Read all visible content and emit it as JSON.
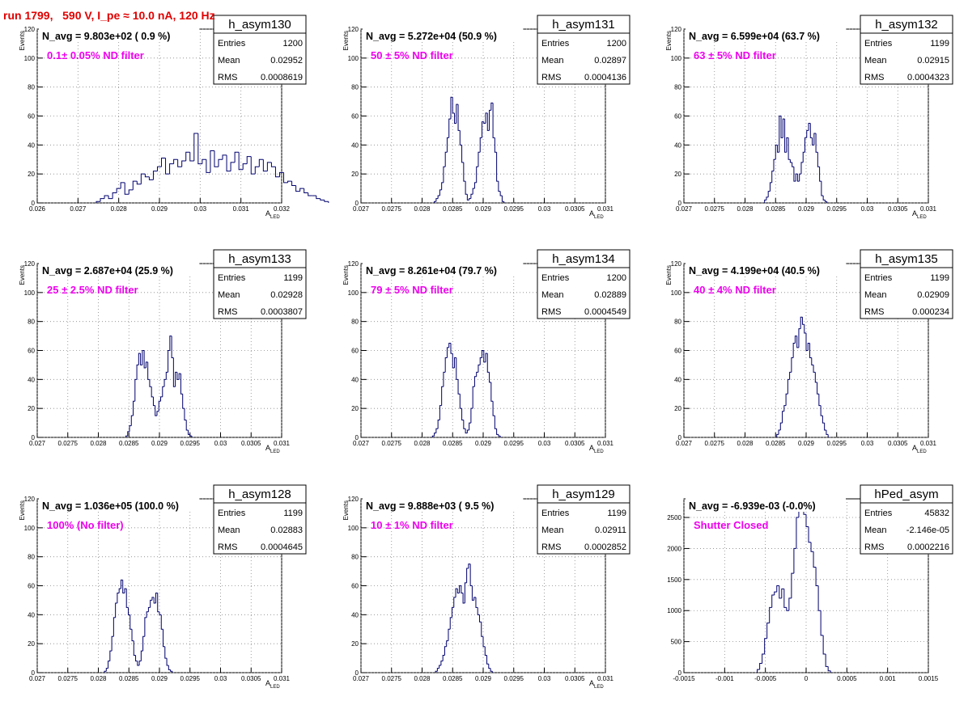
{
  "run_title": "run 1799,   590 V, I_pe ≈ 10.0 nA, 120 Hz",
  "colors": {
    "hist": "#00006e",
    "filter_label": "#ee00ee",
    "run_title": "#e00000",
    "grid": "#888888"
  },
  "stat_labels": {
    "entries": "Entries",
    "mean": "Mean",
    "rms": "RMS"
  },
  "chart_data": [
    {
      "type": "bar",
      "name": "h_asym130",
      "title": "N_avg = 9.803e+02 ( 0.9 %)",
      "filter": "0.1± 0.05% ND filter",
      "ylabel": "Events",
      "xlabel": "A",
      "xlabel_sub": "LED",
      "xlim": [
        0.026,
        0.032
      ],
      "ylim": [
        0,
        120
      ],
      "xticks": [
        0.026,
        0.027,
        0.028,
        0.029,
        0.03,
        0.031,
        0.032
      ],
      "xtick_labels": [
        "0.026",
        "0.027",
        "0.028",
        "0.029",
        "0.03",
        "0.031",
        "0.032"
      ],
      "yticks": [
        0,
        20,
        40,
        60,
        80,
        100,
        120
      ],
      "ytick_labels": [
        "0",
        "20",
        "40",
        "60",
        "80",
        "100",
        "120"
      ],
      "stats": {
        "entries": "1200",
        "mean": "0.02952",
        "rms": "0.0008619"
      },
      "x_start": 0.02745,
      "bin_width": 0.0001,
      "values": [
        1,
        3,
        5,
        3,
        7,
        10,
        14,
        6,
        9,
        15,
        13,
        20,
        18,
        16,
        22,
        25,
        31,
        20,
        27,
        30,
        25,
        29,
        35,
        29,
        48,
        27,
        30,
        21,
        36,
        25,
        30,
        33,
        22,
        28,
        35,
        23,
        27,
        32,
        20,
        25,
        30,
        22,
        28,
        25,
        18,
        21,
        14,
        15,
        12,
        8,
        10,
        7,
        5,
        5,
        3,
        2,
        1
      ]
    },
    {
      "type": "bar",
      "name": "h_asym131",
      "title": "N_avg = 5.272e+04 (50.9 %)",
      "filter": "50 ± 5% ND filter",
      "ylabel": "Events",
      "xlabel": "A",
      "xlabel_sub": "LED",
      "xlim": [
        0.027,
        0.031
      ],
      "ylim": [
        0,
        120
      ],
      "xticks": [
        0.027,
        0.0275,
        0.028,
        0.0285,
        0.029,
        0.0295,
        0.03,
        0.0305,
        0.031
      ],
      "xtick_labels": [
        "0.027",
        "0.0275",
        "0.028",
        "0.0285",
        "0.029",
        "0.0295",
        "0.03",
        "0.0305",
        "0.031"
      ],
      "yticks": [
        0,
        20,
        40,
        60,
        80,
        100,
        120
      ],
      "ytick_labels": [
        "0",
        "20",
        "40",
        "60",
        "80",
        "100",
        "120"
      ],
      "stats": {
        "entries": "1200",
        "mean": "0.02897",
        "rms": "0.0004136"
      },
      "x_start": 0.0282,
      "bin_width": 3e-05,
      "values": [
        1,
        3,
        5,
        9,
        14,
        25,
        35,
        45,
        58,
        73,
        62,
        55,
        68,
        50,
        40,
        28,
        15,
        6,
        2,
        3,
        6,
        10,
        14,
        25,
        35,
        45,
        56,
        55,
        62,
        50,
        64,
        69,
        45,
        35,
        15,
        8,
        5,
        1
      ]
    },
    {
      "type": "bar",
      "name": "h_asym132",
      "title": "N_avg = 6.599e+04 (63.7 %)",
      "filter": "63 ± 5% ND filter",
      "ylabel": "Events",
      "xlabel": "A",
      "xlabel_sub": "LED",
      "xlim": [
        0.027,
        0.031
      ],
      "ylim": [
        0,
        120
      ],
      "xticks": [
        0.027,
        0.0275,
        0.028,
        0.0285,
        0.029,
        0.0295,
        0.03,
        0.0305,
        0.031
      ],
      "xtick_labels": [
        "0.027",
        "0.0275",
        "0.028",
        "0.0285",
        "0.029",
        "0.0295",
        "0.03",
        "0.0305",
        "0.031"
      ],
      "yticks": [
        0,
        20,
        40,
        60,
        80,
        100,
        120
      ],
      "ytick_labels": [
        "0",
        "20",
        "40",
        "60",
        "80",
        "100",
        "120"
      ],
      "stats": {
        "entries": "1199",
        "mean": "0.02915",
        "rms": "0.0004323"
      },
      "x_start": 0.02832,
      "bin_width": 3e-05,
      "values": [
        2,
        4,
        8,
        14,
        22,
        30,
        40,
        35,
        60,
        45,
        58,
        35,
        45,
        30,
        28,
        25,
        15,
        20,
        15,
        20,
        28,
        35,
        45,
        50,
        55,
        45,
        40,
        48,
        35,
        25,
        15,
        5,
        2,
        1
      ]
    },
    {
      "type": "bar",
      "name": "h_asym133",
      "title": "N_avg = 2.687e+04 (25.9 %)",
      "filter": "25 ± 2.5% ND filter",
      "ylabel": "Events",
      "xlabel": "A",
      "xlabel_sub": "LED",
      "xlim": [
        0.027,
        0.031
      ],
      "ylim": [
        0,
        120
      ],
      "xticks": [
        0.027,
        0.0275,
        0.028,
        0.0285,
        0.029,
        0.0295,
        0.03,
        0.0305,
        0.031
      ],
      "xtick_labels": [
        "0.027",
        "0.0275",
        "0.028",
        "0.0285",
        "0.029",
        "0.0295",
        "0.03",
        "0.0305",
        "0.031"
      ],
      "yticks": [
        0,
        20,
        40,
        60,
        80,
        100,
        120
      ],
      "ytick_labels": [
        "0",
        "20",
        "40",
        "60",
        "80",
        "100",
        "120"
      ],
      "stats": {
        "entries": "1199",
        "mean": "0.02928",
        "rms": "0.0003807"
      },
      "x_start": 0.02845,
      "bin_width": 3e-05,
      "values": [
        1,
        4,
        8,
        15,
        25,
        40,
        50,
        58,
        50,
        60,
        48,
        52,
        40,
        35,
        28,
        22,
        15,
        18,
        25,
        28,
        35,
        40,
        45,
        60,
        70,
        55,
        35,
        45,
        40,
        44,
        30,
        20,
        12,
        5,
        2,
        1
      ]
    },
    {
      "type": "bar",
      "name": "h_asym134",
      "title": "N_avg = 8.261e+04 (79.7 %)",
      "filter": "79 ± 5% ND filter",
      "ylabel": "Events",
      "xlabel": "A",
      "xlabel_sub": "LED",
      "xlim": [
        0.027,
        0.031
      ],
      "ylim": [
        0,
        120
      ],
      "xticks": [
        0.027,
        0.0275,
        0.028,
        0.0285,
        0.029,
        0.0295,
        0.03,
        0.0305,
        0.031
      ],
      "xtick_labels": [
        "0.027",
        "0.0275",
        "0.028",
        "0.0285",
        "0.029",
        "0.0295",
        "0.03",
        "0.0305",
        "0.031"
      ],
      "yticks": [
        0,
        20,
        40,
        60,
        80,
        100,
        120
      ],
      "ytick_labels": [
        "0",
        "20",
        "40",
        "60",
        "80",
        "100",
        "120"
      ],
      "stats": {
        "entries": "1200",
        "mean": "0.02889",
        "rms": "0.0004549"
      },
      "x_start": 0.02817,
      "bin_width": 3e-05,
      "values": [
        1,
        3,
        6,
        12,
        22,
        35,
        45,
        55,
        62,
        65,
        58,
        48,
        55,
        40,
        30,
        20,
        12,
        6,
        3,
        5,
        10,
        20,
        35,
        42,
        45,
        50,
        55,
        60,
        52,
        58,
        45,
        38,
        25,
        15,
        6,
        2,
        1
      ]
    },
    {
      "type": "bar",
      "name": "h_asym135",
      "title": "N_avg = 4.199e+04 (40.5 %)",
      "filter": "40 ± 4% ND filter",
      "ylabel": "Events",
      "xlabel": "A",
      "xlabel_sub": "LED",
      "xlim": [
        0.027,
        0.031
      ],
      "ylim": [
        0,
        120
      ],
      "xticks": [
        0.027,
        0.0275,
        0.028,
        0.0285,
        0.029,
        0.0295,
        0.03,
        0.0305,
        0.031
      ],
      "xtick_labels": [
        "0.027",
        "0.0275",
        "0.028",
        "0.0285",
        "0.029",
        "0.0295",
        "0.03",
        "0.0305",
        "0.031"
      ],
      "yticks": [
        0,
        20,
        40,
        60,
        80,
        100,
        120
      ],
      "ytick_labels": [
        "0",
        "20",
        "40",
        "60",
        "80",
        "100",
        "120"
      ],
      "stats": {
        "entries": "1199",
        "mean": "0.02909",
        "rms": "0.000234"
      },
      "x_start": 0.02852,
      "bin_width": 3e-05,
      "values": [
        2,
        5,
        10,
        18,
        22,
        30,
        40,
        45,
        55,
        65,
        70,
        62,
        75,
        83,
        78,
        72,
        60,
        65,
        55,
        50,
        45,
        38,
        30,
        22,
        15,
        10,
        5,
        2
      ]
    },
    {
      "type": "bar",
      "name": "h_asym128",
      "title": "N_avg = 1.036e+05 (100.0 %)",
      "filter": "100% (No filter)",
      "ylabel": "Events",
      "xlabel": "A",
      "xlabel_sub": "LED",
      "xlim": [
        0.027,
        0.031
      ],
      "ylim": [
        0,
        120
      ],
      "xticks": [
        0.027,
        0.0275,
        0.028,
        0.0285,
        0.029,
        0.0295,
        0.03,
        0.0305,
        0.031
      ],
      "xtick_labels": [
        "0.027",
        "0.0275",
        "0.028",
        "0.0285",
        "0.029",
        "0.0295",
        "0.03",
        "0.0305",
        "0.031"
      ],
      "yticks": [
        0,
        20,
        40,
        60,
        80,
        100,
        120
      ],
      "ytick_labels": [
        "0",
        "20",
        "40",
        "60",
        "80",
        "100",
        "120"
      ],
      "stats": {
        "entries": "1199",
        "mean": "0.02883",
        "rms": "0.0004645"
      },
      "x_start": 0.0281,
      "bin_width": 3e-05,
      "values": [
        1,
        3,
        8,
        15,
        25,
        38,
        48,
        55,
        58,
        64,
        55,
        58,
        45,
        40,
        30,
        22,
        12,
        8,
        5,
        8,
        15,
        25,
        38,
        42,
        45,
        50,
        52,
        48,
        55,
        42,
        40,
        30,
        18,
        10,
        5,
        2,
        1
      ]
    },
    {
      "type": "bar",
      "name": "h_asym129",
      "title": "N_avg = 9.888e+03 ( 9.5 %)",
      "filter": "10 ± 1% ND filter",
      "ylabel": "Events",
      "xlabel": "A",
      "xlabel_sub": "LED",
      "xlim": [
        0.027,
        0.031
      ],
      "ylim": [
        0,
        120
      ],
      "xticks": [
        0.027,
        0.0275,
        0.028,
        0.0285,
        0.029,
        0.0295,
        0.03,
        0.0305,
        0.031
      ],
      "xtick_labels": [
        "0.027",
        "0.0275",
        "0.028",
        "0.0285",
        "0.029",
        "0.0295",
        "0.03",
        "0.0305",
        "0.031"
      ],
      "yticks": [
        0,
        20,
        40,
        60,
        80,
        100,
        120
      ],
      "ytick_labels": [
        "0",
        "20",
        "40",
        "60",
        "80",
        "100",
        "120"
      ],
      "stats": {
        "entries": "1199",
        "mean": "0.02911",
        "rms": "0.0002852"
      },
      "x_start": 0.02822,
      "bin_width": 3e-05,
      "values": [
        1,
        3,
        5,
        8,
        12,
        18,
        22,
        30,
        38,
        45,
        52,
        58,
        55,
        60,
        55,
        48,
        62,
        72,
        75,
        60,
        50,
        52,
        45,
        40,
        35,
        25,
        18,
        12,
        6,
        3,
        1
      ]
    },
    {
      "type": "bar",
      "name": "hPed_asym",
      "title": "N_avg = -6.939e-03 (-0.0%)",
      "filter": "Shutter Closed",
      "ylabel": "",
      "xlabel": "",
      "xlabel_sub": "",
      "xlim": [
        -0.0015,
        0.0015
      ],
      "ylim": [
        0,
        2800
      ],
      "xticks": [
        -0.0015,
        -0.001,
        -0.0005,
        0,
        0.0005,
        0.001,
        0.0015
      ],
      "xtick_labels": [
        "-0.0015",
        "-0.001",
        "-0.0005",
        "0",
        "0.0005",
        "0.001",
        "0.0015"
      ],
      "yticks": [
        0,
        500,
        1000,
        1500,
        2000,
        2500
      ],
      "ytick_labels": [
        "0",
        "500",
        "1000",
        "1500",
        "2000",
        "2500"
      ],
      "stats": {
        "entries": "45832",
        "mean": "-2.146e-05",
        "rms": "0.0002216"
      },
      "x_start": -0.0006,
      "bin_width": 3e-05,
      "values": [
        50,
        150,
        300,
        550,
        800,
        1050,
        1250,
        1300,
        1400,
        1200,
        1350,
        1050,
        1000,
        1200,
        1600,
        2000,
        2500,
        2750,
        2650,
        2550,
        2350,
        2100,
        1950,
        1700,
        1400,
        1000,
        600,
        300,
        100,
        30
      ]
    }
  ]
}
